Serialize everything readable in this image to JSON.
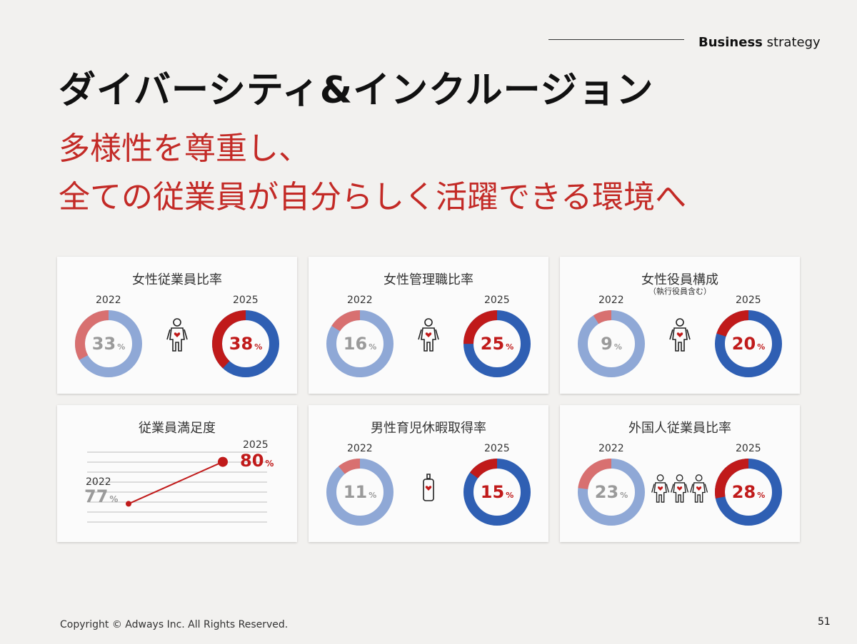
{
  "header": {
    "label_bold": "Business",
    "label_rest": " strategy"
  },
  "title": "ダイバーシティ&インクルージョン",
  "subtitle": {
    "line1": "多様性を尊重し、",
    "line2": "全ての従業員が自分らしく活躍できる環境へ"
  },
  "colors": {
    "accent": "#c32a26",
    "blue_dark": "#2f5fb3",
    "blue_light": "#8fa8d6",
    "red_light": "#d87070",
    "red_dark": "#c01a1a"
  },
  "cards": [
    {
      "title": "女性従業員比率",
      "note": "",
      "year_a": "2022",
      "year_b": "2025",
      "value_a": "33",
      "value_b": "38",
      "unit": "%",
      "icon": "woman-icon"
    },
    {
      "title": "女性管理職比率",
      "note": "",
      "year_a": "2022",
      "year_b": "2025",
      "value_a": "16",
      "value_b": "25",
      "unit": "%",
      "icon": "woman-icon"
    },
    {
      "title": "女性役員構成",
      "note": "（執行役員含む）",
      "year_a": "2022",
      "year_b": "2025",
      "value_a": "9",
      "value_b": "20",
      "unit": "%",
      "icon": "woman-icon"
    },
    {
      "title": "男性育児休暇取得率",
      "note": "",
      "year_a": "2022",
      "year_b": "2025",
      "value_a": "11",
      "value_b": "15",
      "unit": "%",
      "icon": "baby-bottle-icon"
    },
    {
      "title": "外国人従業員比率",
      "note": "",
      "year_a": "2022",
      "year_b": "2025",
      "value_a": "23",
      "value_b": "28",
      "unit": "%",
      "icon": "people-group-icon"
    }
  ],
  "satisfaction": {
    "title": "従業員満足度",
    "year_a": "2022",
    "year_b": "2025",
    "value_a": "77",
    "value_b": "80",
    "unit": "%"
  },
  "chart_data": [
    {
      "type": "pie",
      "title": "女性従業員比率",
      "series": [
        {
          "name": "2022",
          "values": [
            33
          ]
        },
        {
          "name": "2025",
          "values": [
            38
          ]
        }
      ]
    },
    {
      "type": "pie",
      "title": "女性管理職比率",
      "series": [
        {
          "name": "2022",
          "values": [
            16
          ]
        },
        {
          "name": "2025",
          "values": [
            25
          ]
        }
      ]
    },
    {
      "type": "pie",
      "title": "女性役員構成",
      "series": [
        {
          "name": "2022",
          "values": [
            9
          ]
        },
        {
          "name": "2025",
          "values": [
            20
          ]
        }
      ]
    },
    {
      "type": "line",
      "title": "従業員満足度",
      "x": [
        "2022",
        "2025"
      ],
      "values": [
        77,
        80
      ]
    },
    {
      "type": "pie",
      "title": "男性育児休暇取得率",
      "series": [
        {
          "name": "2022",
          "values": [
            11
          ]
        },
        {
          "name": "2025",
          "values": [
            15
          ]
        }
      ]
    },
    {
      "type": "pie",
      "title": "外国人従業員比率",
      "series": [
        {
          "name": "2022",
          "values": [
            23
          ]
        },
        {
          "name": "2025",
          "values": [
            28
          ]
        }
      ]
    }
  ],
  "footer": {
    "copyright": "Copyright © Adways Inc. All Rights Reserved.",
    "page": "51"
  }
}
